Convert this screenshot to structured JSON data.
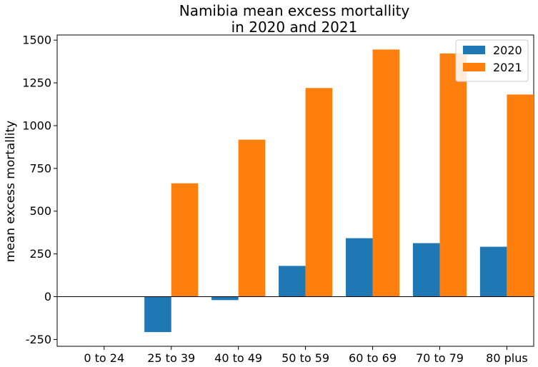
{
  "chart_data": {
    "type": "bar",
    "title_lines": [
      "Namibia mean excess mortallity",
      "in 2020 and 2021"
    ],
    "xlabel": "",
    "ylabel": "mean excess mortallity",
    "categories": [
      "0 to 24",
      "25 to 39",
      "40 to 49",
      "50 to 59",
      "60 to 69",
      "70 to 79",
      "80 plus"
    ],
    "series": [
      {
        "name": "2020",
        "color": "#1f77b4",
        "values": [
          0,
          -207,
          -20,
          180,
          342,
          313,
          292
        ]
      },
      {
        "name": "2021",
        "color": "#ff7f0e",
        "values": [
          0,
          663,
          918,
          1220,
          1445,
          1422,
          1182
        ]
      }
    ],
    "yticks": [
      -250,
      0,
      250,
      500,
      750,
      1000,
      1250,
      1500
    ],
    "ylim": [
      -290,
      1530
    ],
    "grid": false,
    "legend_position": "top-right",
    "zero_line": true
  }
}
